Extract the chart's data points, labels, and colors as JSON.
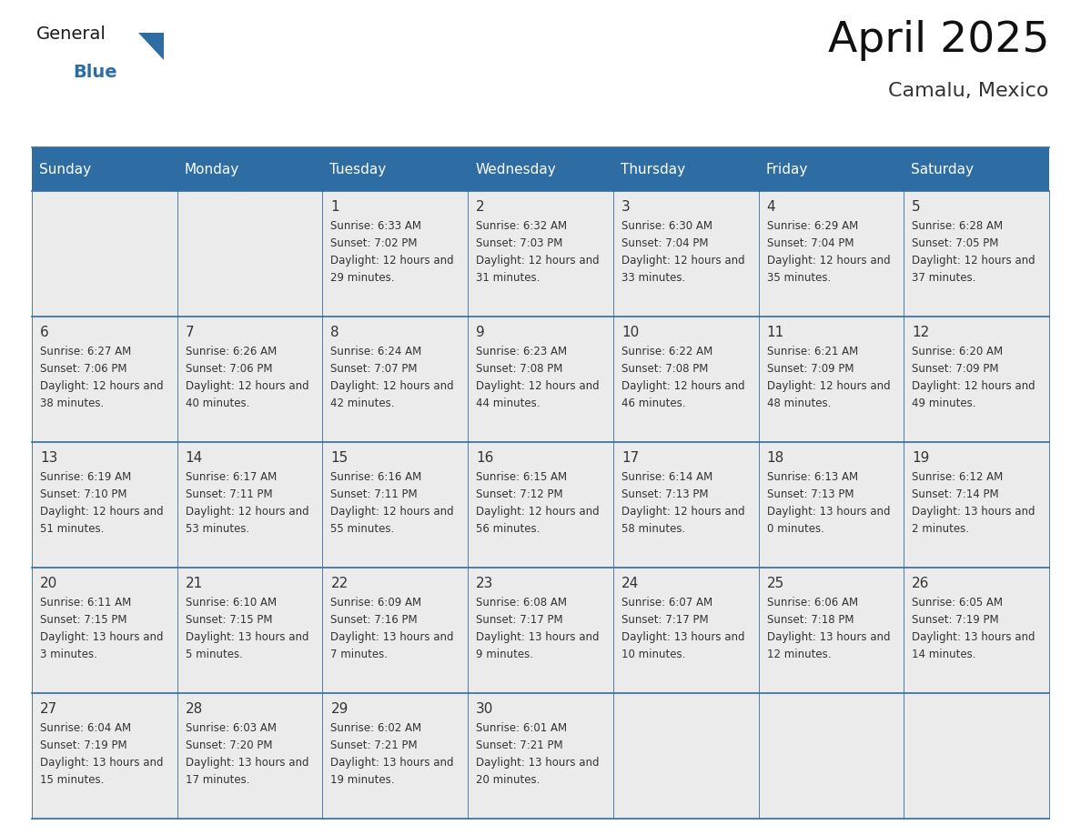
{
  "title": "April 2025",
  "subtitle": "Camalu, Mexico",
  "header_bg_color": "#2E6DA4",
  "header_text_color": "#FFFFFF",
  "cell_bg_color": "#EBEBEB",
  "grid_line_color": "#2E6DA4",
  "text_color": "#333333",
  "day_num_color": "#333333",
  "day_headers": [
    "Sunday",
    "Monday",
    "Tuesday",
    "Wednesday",
    "Thursday",
    "Friday",
    "Saturday"
  ],
  "weeks": [
    [
      {
        "day": "",
        "sunrise": "",
        "sunset": "",
        "daylight": ""
      },
      {
        "day": "",
        "sunrise": "",
        "sunset": "",
        "daylight": ""
      },
      {
        "day": "1",
        "sunrise": "6:33 AM",
        "sunset": "7:02 PM",
        "daylight": "12 hours and 29 minutes."
      },
      {
        "day": "2",
        "sunrise": "6:32 AM",
        "sunset": "7:03 PM",
        "daylight": "12 hours and 31 minutes."
      },
      {
        "day": "3",
        "sunrise": "6:30 AM",
        "sunset": "7:04 PM",
        "daylight": "12 hours and 33 minutes."
      },
      {
        "day": "4",
        "sunrise": "6:29 AM",
        "sunset": "7:04 PM",
        "daylight": "12 hours and 35 minutes."
      },
      {
        "day": "5",
        "sunrise": "6:28 AM",
        "sunset": "7:05 PM",
        "daylight": "12 hours and 37 minutes."
      }
    ],
    [
      {
        "day": "6",
        "sunrise": "6:27 AM",
        "sunset": "7:06 PM",
        "daylight": "12 hours and 38 minutes."
      },
      {
        "day": "7",
        "sunrise": "6:26 AM",
        "sunset": "7:06 PM",
        "daylight": "12 hours and 40 minutes."
      },
      {
        "day": "8",
        "sunrise": "6:24 AM",
        "sunset": "7:07 PM",
        "daylight": "12 hours and 42 minutes."
      },
      {
        "day": "9",
        "sunrise": "6:23 AM",
        "sunset": "7:08 PM",
        "daylight": "12 hours and 44 minutes."
      },
      {
        "day": "10",
        "sunrise": "6:22 AM",
        "sunset": "7:08 PM",
        "daylight": "12 hours and 46 minutes."
      },
      {
        "day": "11",
        "sunrise": "6:21 AM",
        "sunset": "7:09 PM",
        "daylight": "12 hours and 48 minutes."
      },
      {
        "day": "12",
        "sunrise": "6:20 AM",
        "sunset": "7:09 PM",
        "daylight": "12 hours and 49 minutes."
      }
    ],
    [
      {
        "day": "13",
        "sunrise": "6:19 AM",
        "sunset": "7:10 PM",
        "daylight": "12 hours and 51 minutes."
      },
      {
        "day": "14",
        "sunrise": "6:17 AM",
        "sunset": "7:11 PM",
        "daylight": "12 hours and 53 minutes."
      },
      {
        "day": "15",
        "sunrise": "6:16 AM",
        "sunset": "7:11 PM",
        "daylight": "12 hours and 55 minutes."
      },
      {
        "day": "16",
        "sunrise": "6:15 AM",
        "sunset": "7:12 PM",
        "daylight": "12 hours and 56 minutes."
      },
      {
        "day": "17",
        "sunrise": "6:14 AM",
        "sunset": "7:13 PM",
        "daylight": "12 hours and 58 minutes."
      },
      {
        "day": "18",
        "sunrise": "6:13 AM",
        "sunset": "7:13 PM",
        "daylight": "13 hours and 0 minutes."
      },
      {
        "day": "19",
        "sunrise": "6:12 AM",
        "sunset": "7:14 PM",
        "daylight": "13 hours and 2 minutes."
      }
    ],
    [
      {
        "day": "20",
        "sunrise": "6:11 AM",
        "sunset": "7:15 PM",
        "daylight": "13 hours and 3 minutes."
      },
      {
        "day": "21",
        "sunrise": "6:10 AM",
        "sunset": "7:15 PM",
        "daylight": "13 hours and 5 minutes."
      },
      {
        "day": "22",
        "sunrise": "6:09 AM",
        "sunset": "7:16 PM",
        "daylight": "13 hours and 7 minutes."
      },
      {
        "day": "23",
        "sunrise": "6:08 AM",
        "sunset": "7:17 PM",
        "daylight": "13 hours and 9 minutes."
      },
      {
        "day": "24",
        "sunrise": "6:07 AM",
        "sunset": "7:17 PM",
        "daylight": "13 hours and 10 minutes."
      },
      {
        "day": "25",
        "sunrise": "6:06 AM",
        "sunset": "7:18 PM",
        "daylight": "13 hours and 12 minutes."
      },
      {
        "day": "26",
        "sunrise": "6:05 AM",
        "sunset": "7:19 PM",
        "daylight": "13 hours and 14 minutes."
      }
    ],
    [
      {
        "day": "27",
        "sunrise": "6:04 AM",
        "sunset": "7:19 PM",
        "daylight": "13 hours and 15 minutes."
      },
      {
        "day": "28",
        "sunrise": "6:03 AM",
        "sunset": "7:20 PM",
        "daylight": "13 hours and 17 minutes."
      },
      {
        "day": "29",
        "sunrise": "6:02 AM",
        "sunset": "7:21 PM",
        "daylight": "13 hours and 19 minutes."
      },
      {
        "day": "30",
        "sunrise": "6:01 AM",
        "sunset": "7:21 PM",
        "daylight": "13 hours and 20 minutes."
      },
      {
        "day": "",
        "sunrise": "",
        "sunset": "",
        "daylight": ""
      },
      {
        "day": "",
        "sunrise": "",
        "sunset": "",
        "daylight": ""
      },
      {
        "day": "",
        "sunrise": "",
        "sunset": "",
        "daylight": ""
      }
    ]
  ],
  "logo_general_color": "#1a1a1a",
  "logo_blue_color": "#2E6DA4",
  "fig_width": 11.88,
  "fig_height": 9.18,
  "dpi": 100
}
